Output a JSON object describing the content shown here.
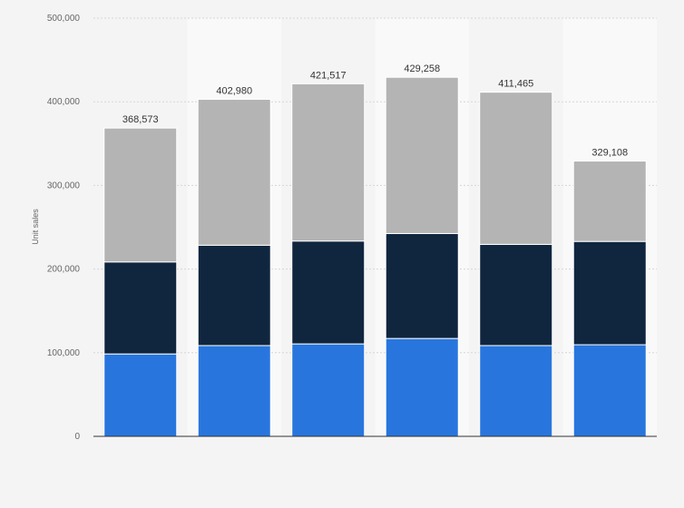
{
  "chart_data": {
    "type": "bar",
    "stacked": true,
    "title": "",
    "xlabel": "",
    "ylabel": "Unit sales",
    "ylim": [
      0,
      500000
    ],
    "yticks": [
      0,
      100000,
      200000,
      300000,
      400000,
      500000
    ],
    "ytick_labels": [
      "0",
      "100,000",
      "200,000",
      "300,000",
      "400,000",
      "500,000"
    ],
    "grid": true,
    "legend": "none",
    "categories": [
      "",
      "",
      "",
      "",
      "",
      ""
    ],
    "series": [
      {
        "values": [
          98500,
          108500,
          110500,
          117000,
          108500,
          109500
        ],
        "color": "#2876dd"
      },
      {
        "values": [
          110000,
          120000,
          123000,
          125500,
          121000,
          123500
        ],
        "color": "#10263f"
      },
      {
        "values": [
          160073,
          174480,
          188017,
          186758,
          181965,
          96108
        ],
        "color": "#b4b4b4"
      }
    ],
    "totals": [
      368573,
      402980,
      421517,
      429258,
      411465,
      329108
    ],
    "total_labels": [
      "368,573",
      "402,980",
      "421,517",
      "429,258",
      "411,465",
      "329,108"
    ]
  }
}
